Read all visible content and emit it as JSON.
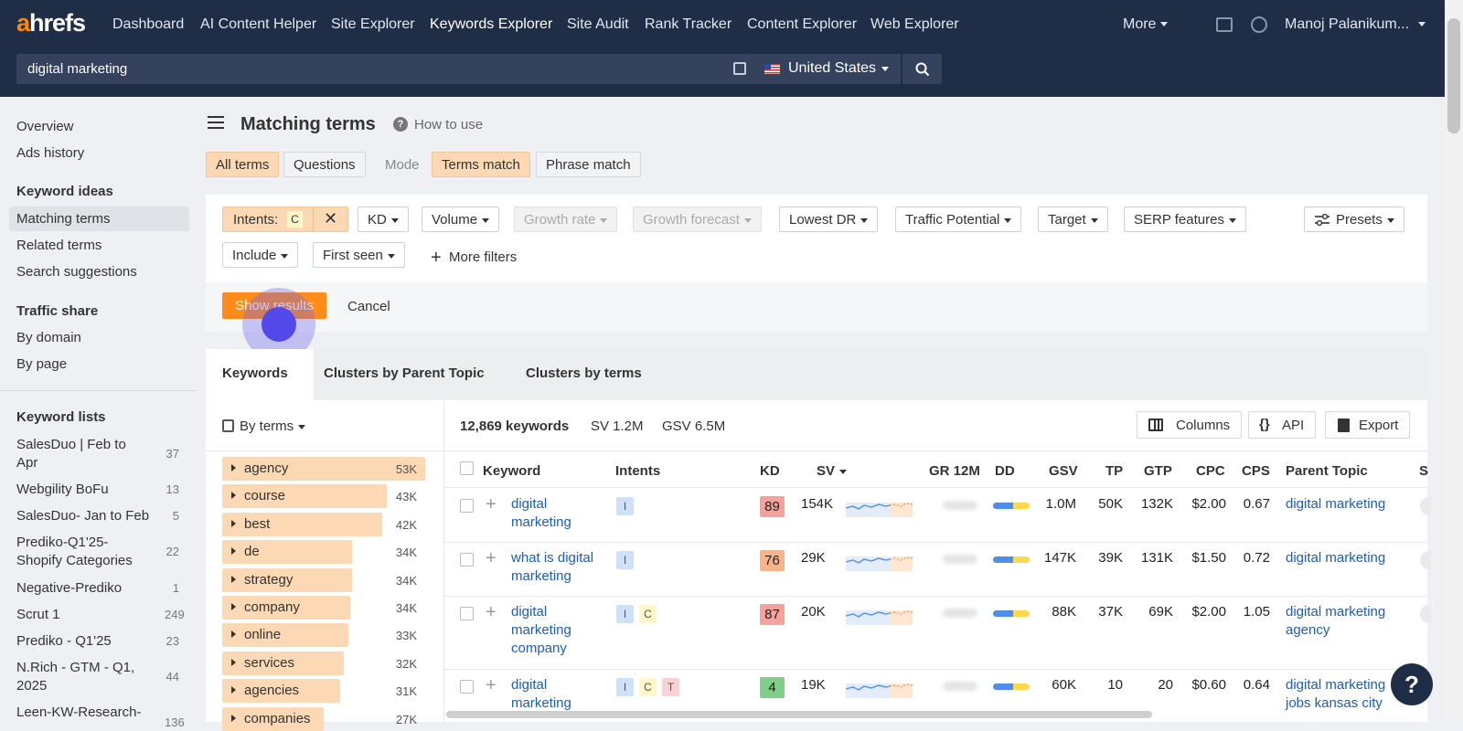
{
  "header": {
    "logo_a": "a",
    "logo_rest": "hrefs",
    "nav": [
      "Dashboard",
      "AI Content Helper",
      "Site Explorer",
      "Keywords Explorer",
      "Site Audit",
      "Rank Tracker",
      "Content Explorer",
      "Web Explorer"
    ],
    "more": "More",
    "user": "Manoj Palanikum..."
  },
  "search": {
    "value": "digital marketing",
    "country": "United States"
  },
  "sidebar": {
    "overview": "Overview",
    "ads_history": "Ads history",
    "keyword_ideas_heading": "Keyword ideas",
    "matching_terms": "Matching terms",
    "related_terms": "Related terms",
    "search_suggestions": "Search suggestions",
    "traffic_share_heading": "Traffic share",
    "by_domain": "By domain",
    "by_page": "By page",
    "keyword_lists_heading": "Keyword lists",
    "lists": [
      {
        "l1": "SalesDuo | Feb to",
        "l2": "Apr",
        "count": "37"
      },
      {
        "l1": "Webgility BoFu",
        "l2": "",
        "count": "13"
      },
      {
        "l1": "SalesDuo- Jan to Feb",
        "l2": "",
        "count": "5"
      },
      {
        "l1": "Prediko-Q1'25-",
        "l2": "Shopify Categories",
        "count": "22"
      },
      {
        "l1": "Negative-Prediko",
        "l2": "",
        "count": "1"
      },
      {
        "l1": "Scrut 1",
        "l2": "",
        "count": "249"
      },
      {
        "l1": "Prediko - Q1'25",
        "l2": "",
        "count": "23"
      },
      {
        "l1": "N.Rich - GTM - Q1,",
        "l2": "2025",
        "count": "44"
      },
      {
        "l1": "Leen-KW-Research-",
        "l2": "",
        "count": "136"
      }
    ]
  },
  "page": {
    "title": "Matching terms",
    "how_to_use": "How to use"
  },
  "toggles": {
    "all_terms": "All terms",
    "questions": "Questions",
    "mode": "Mode",
    "terms_match": "Terms match",
    "phrase_match": "Phrase match"
  },
  "filters": {
    "intents": "Intents:",
    "intents_value": "C",
    "kd": "KD",
    "volume": "Volume",
    "growth_rate": "Growth rate",
    "growth_forecast": "Growth forecast",
    "lowest_dr": "Lowest DR",
    "traffic_potential": "Traffic Potential",
    "target": "Target",
    "serp_features": "SERP features",
    "presets": "Presets",
    "include": "Include",
    "first_seen": "First seen",
    "more_filters": "More filters"
  },
  "actions": {
    "show_results": "Show results",
    "cancel": "Cancel"
  },
  "tabs": [
    "Keywords",
    "Clusters by Parent Topic",
    "Clusters by terms"
  ],
  "toolbar": {
    "by_terms": "By terms",
    "count": "12,869 keywords",
    "sv": "SV 1.2M",
    "gsv": "GSV 6.5M",
    "columns": "Columns",
    "api": "API",
    "export": "Export"
  },
  "terms": [
    {
      "term": "agency",
      "count": "53K",
      "share": 1.0
    },
    {
      "term": "course",
      "count": "43K",
      "share": 0.81
    },
    {
      "term": "best",
      "count": "42K",
      "share": 0.79
    },
    {
      "term": "de",
      "count": "34K",
      "share": 0.64
    },
    {
      "term": "strategy",
      "count": "34K",
      "share": 0.64
    },
    {
      "term": "company",
      "count": "34K",
      "share": 0.63
    },
    {
      "term": "online",
      "count": "33K",
      "share": 0.62
    },
    {
      "term": "services",
      "count": "32K",
      "share": 0.6
    },
    {
      "term": "agencies",
      "count": "31K",
      "share": 0.58
    },
    {
      "term": "companies",
      "count": "27K",
      "share": 0.5
    }
  ],
  "table": {
    "headers": {
      "keyword": "Keyword",
      "intents": "Intents",
      "kd": "KD",
      "sv": "SV",
      "gr": "GR 12M",
      "dd": "DD",
      "gsv": "GSV",
      "tp": "TP",
      "gtp": "GTP",
      "cpc": "CPC",
      "cps": "CPS",
      "parent": "Parent Topic",
      "s": "S"
    },
    "rows": [
      {
        "kw1": "digital",
        "kw2": "marketing",
        "kw3": "",
        "intents": [
          "I"
        ],
        "kd": "89",
        "kd_color": "#f4a29a",
        "sv": "154K",
        "gsv": "1.0M",
        "tp": "50K",
        "gtp": "132K",
        "cpc": "$2.00",
        "cps": "0.67",
        "p1": "digital marketing",
        "p2": ""
      },
      {
        "kw1": "what is digital",
        "kw2": "marketing",
        "kw3": "",
        "intents": [
          "I"
        ],
        "kd": "76",
        "kd_color": "#f7b38a",
        "sv": "29K",
        "gsv": "147K",
        "tp": "39K",
        "gtp": "131K",
        "cpc": "$1.50",
        "cps": "0.72",
        "p1": "digital marketing",
        "p2": ""
      },
      {
        "kw1": "digital",
        "kw2": "marketing",
        "kw3": "company",
        "intents": [
          "I",
          "C"
        ],
        "kd": "87",
        "kd_color": "#f4a29a",
        "sv": "20K",
        "gsv": "88K",
        "tp": "37K",
        "gtp": "69K",
        "cpc": "$2.00",
        "cps": "1.05",
        "p1": "digital marketing",
        "p2": "agency"
      },
      {
        "kw1": "digital",
        "kw2": "marketing",
        "kw3": "",
        "intents": [
          "I",
          "C",
          "T"
        ],
        "kd": "4",
        "kd_color": "#7fcf86",
        "sv": "19K",
        "gsv": "60K",
        "tp": "10",
        "gtp": "20",
        "cpc": "$0.60",
        "cps": "0.64",
        "p1": "digital marketing",
        "p2": "jobs kansas city"
      }
    ]
  },
  "help": "?"
}
